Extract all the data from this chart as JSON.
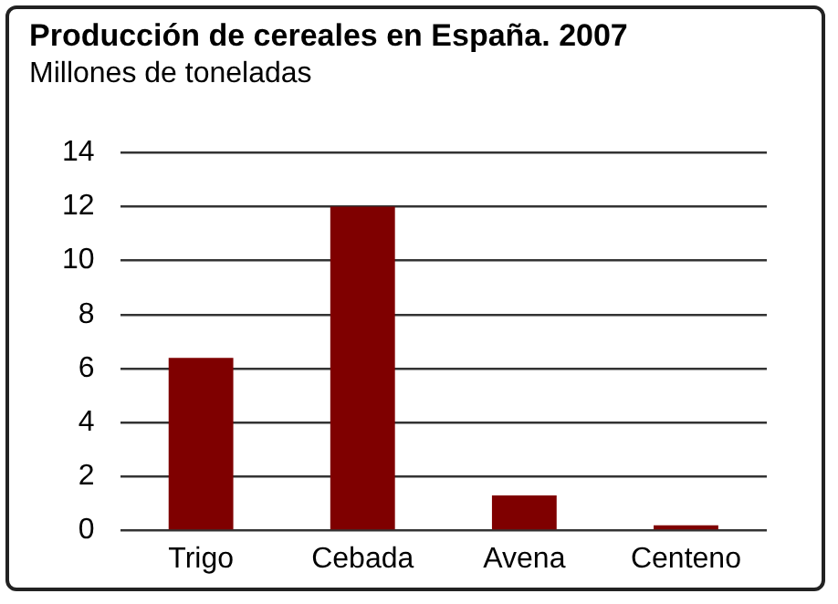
{
  "chart_data": {
    "type": "bar",
    "title": "Producción de cereales en España. 2007",
    "subtitle": "Millones de toneladas",
    "categories": [
      "Trigo",
      "Cebada",
      "Avena",
      "Centeno"
    ],
    "values": [
      6.4,
      12,
      1.3,
      0.2
    ],
    "color": "#7f0000",
    "ylim": [
      0,
      14
    ],
    "yticks": [
      0,
      2,
      4,
      6,
      8,
      10,
      12,
      14
    ],
    "grid": "y",
    "legend": false
  }
}
